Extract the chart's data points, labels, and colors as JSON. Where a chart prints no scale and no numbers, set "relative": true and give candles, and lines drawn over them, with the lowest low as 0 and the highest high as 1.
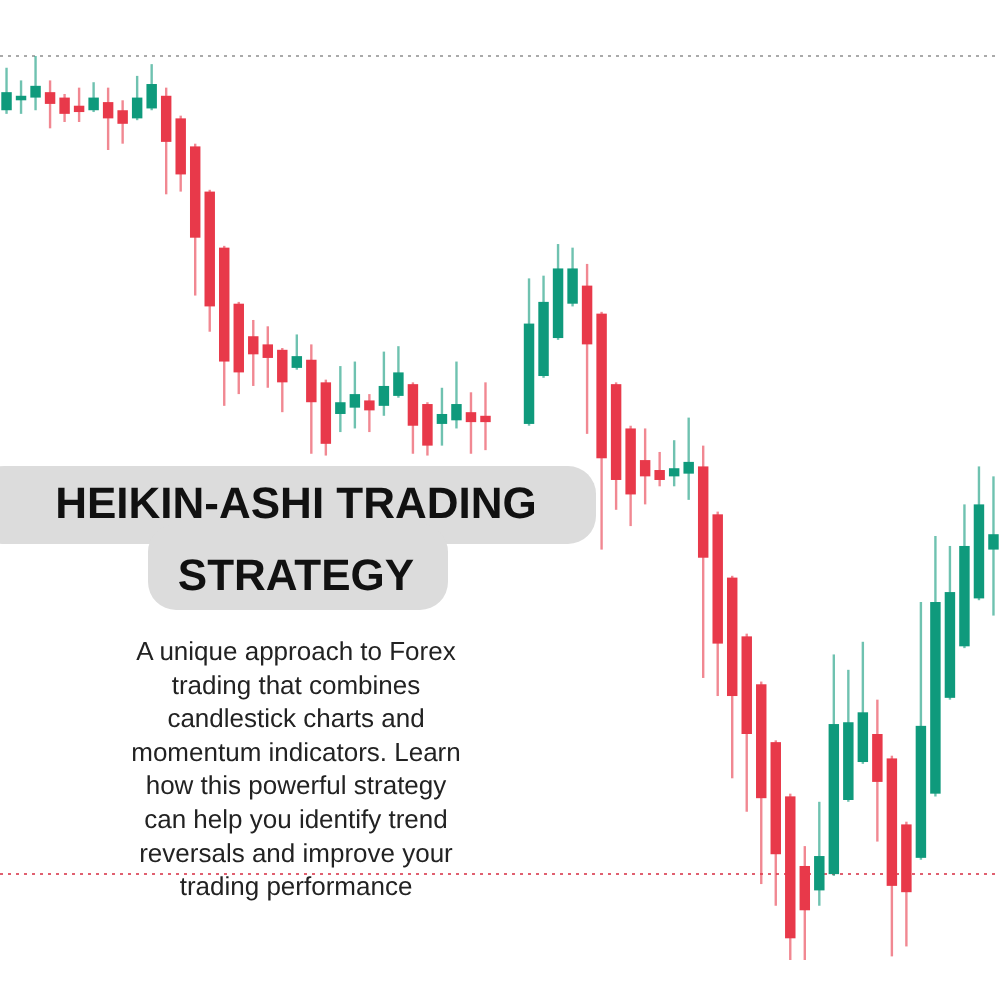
{
  "chart_data": {
    "type": "candlestick",
    "relative": true,
    "title": "HEIKIN-ASHI TRADING STRATEGY",
    "subtitle": "A unique approach to Forex trading that combines candlestick charts and momentum indicators. Learn how this powerful strategy can help you identify trend reversals and improve your trading performance",
    "categories": [
      null,
      null,
      null,
      null,
      null,
      null,
      null,
      null,
      null,
      null,
      null,
      null,
      null,
      null,
      null,
      null,
      null,
      null,
      null,
      null,
      null,
      null,
      null,
      null,
      null,
      null,
      null,
      null,
      null,
      null,
      null,
      null,
      null,
      null,
      null,
      null,
      null,
      null,
      null,
      null,
      null,
      null,
      null,
      null,
      null,
      null,
      null,
      null,
      null,
      null,
      null,
      null,
      null,
      null,
      null,
      null,
      null,
      null,
      null,
      null,
      null,
      null,
      null,
      null,
      null,
      null,
      null,
      null,
      null
    ],
    "ohlc": [
      [
        0.94,
        0.987,
        0.936,
        0.96
      ],
      [
        0.951,
        0.973,
        0.936,
        0.956
      ],
      [
        0.954,
        1,
        0.94,
        0.967
      ],
      [
        0.96,
        0.973,
        0.92,
        0.947
      ],
      [
        0.954,
        0.958,
        0.927,
        0.936
      ],
      [
        0.945,
        0.965,
        0.927,
        0.938
      ],
      [
        0.94,
        0.971,
        0.938,
        0.954
      ],
      [
        0.949,
        0.965,
        0.896,
        0.931
      ],
      [
        0.94,
        0.951,
        0.903,
        0.925
      ],
      [
        0.931,
        0.978,
        0.929,
        0.954
      ],
      [
        0.942,
        0.991,
        0.94,
        0.969
      ],
      [
        0.956,
        0.965,
        0.847,
        0.905
      ],
      [
        0.931,
        0.934,
        0.85,
        0.869
      ],
      [
        0.9,
        0.903,
        0.735,
        0.799
      ],
      [
        0.85,
        0.852,
        0.695,
        0.723
      ],
      [
        0.788,
        0.79,
        0.613,
        0.662
      ],
      [
        0.726,
        0.728,
        0.626,
        0.65
      ],
      [
        0.69,
        0.708,
        0.635,
        0.67
      ],
      [
        0.681,
        0.701,
        0.633,
        0.666
      ],
      [
        0.675,
        0.677,
        0.606,
        0.639
      ],
      [
        0.655,
        0.692,
        0.653,
        0.668
      ],
      [
        0.664,
        0.681,
        0.56,
        0.617
      ],
      [
        0.639,
        0.642,
        0.558,
        0.571
      ],
      [
        0.604,
        0.657,
        0.584,
        0.617
      ],
      [
        0.611,
        0.662,
        0.588,
        0.626
      ],
      [
        0.619,
        0.626,
        0.584,
        0.608
      ],
      [
        0.613,
        0.673,
        0.602,
        0.635
      ],
      [
        0.624,
        0.679,
        0.622,
        0.65
      ],
      [
        0.637,
        0.639,
        0.56,
        0.591
      ],
      [
        0.615,
        0.617,
        0.558,
        0.569
      ],
      [
        0.593,
        0.633,
        0.569,
        0.604
      ],
      [
        0.597,
        0.662,
        0.588,
        0.615
      ],
      [
        0.606,
        0.628,
        0.56,
        0.595
      ],
      [
        0.602,
        0.639,
        0.564,
        0.595
      ],
      null,
      null,
      [
        0.593,
        0.754,
        0.591,
        0.704
      ],
      [
        0.646,
        0.757,
        0.644,
        0.728
      ],
      [
        0.688,
        0.792,
        0.686,
        0.765
      ],
      [
        0.726,
        0.788,
        0.723,
        0.765
      ],
      [
        0.746,
        0.77,
        0.582,
        0.681
      ],
      [
        0.715,
        0.717,
        0.454,
        0.555
      ],
      [
        0.637,
        0.639,
        0.498,
        0.531
      ],
      [
        0.588,
        0.591,
        0.48,
        0.515
      ],
      [
        0.553,
        0.588,
        0.504,
        0.535
      ],
      [
        0.542,
        0.562,
        0.524,
        0.531
      ],
      [
        0.535,
        0.575,
        0.524,
        0.544
      ],
      [
        0.538,
        0.6,
        0.509,
        0.551
      ],
      [
        0.546,
        0.569,
        0.312,
        0.445
      ],
      [
        0.493,
        0.496,
        0.292,
        0.35
      ],
      [
        0.423,
        0.425,
        0.201,
        0.292
      ],
      [
        0.358,
        0.361,
        0.164,
        0.25
      ],
      [
        0.305,
        0.308,
        0.084,
        0.179
      ],
      [
        0.241,
        0.243,
        0.06,
        0.117
      ],
      [
        0.181,
        0.184,
        0,
        0.024
      ],
      [
        0.104,
        0.126,
        0,
        0.055
      ],
      [
        0.077,
        0.175,
        0.06,
        0.115
      ],
      [
        0.095,
        0.338,
        0.093,
        0.261
      ],
      [
        0.177,
        0.321,
        0.175,
        0.263
      ],
      [
        0.219,
        0.352,
        0.217,
        0.274
      ],
      [
        0.25,
        0.288,
        0.131,
        0.197
      ],
      [
        0.223,
        0.226,
        0.004,
        0.082
      ],
      [
        0.15,
        0.153,
        0.015,
        0.075
      ],
      [
        0.113,
        0.396,
        0.111,
        0.259
      ],
      [
        0.184,
        0.469,
        0.181,
        0.396
      ],
      [
        0.29,
        0.458,
        0.288,
        0.407
      ],
      [
        0.347,
        0.504,
        0.345,
        0.458
      ],
      [
        0.4,
        0.546,
        0.398,
        0.504
      ],
      [
        0.454,
        0.535,
        0.381,
        0.471
      ]
    ],
    "colors": [
      "#0f9a7c",
      "#0f9a7c",
      "#0f9a7c",
      "#e8394a",
      "#e8394a",
      "#e8394a",
      "#0f9a7c",
      "#e8394a",
      "#e8394a",
      "#0f9a7c",
      "#0f9a7c",
      "#e8394a",
      "#e8394a",
      "#e8394a",
      "#e8394a",
      "#e8394a",
      "#e8394a",
      "#e8394a",
      "#e8394a",
      "#e8394a",
      "#0f9a7c",
      "#e8394a",
      "#e8394a",
      "#0f9a7c",
      "#0f9a7c",
      "#e8394a",
      "#0f9a7c",
      "#0f9a7c",
      "#e8394a",
      "#e8394a",
      "#0f9a7c",
      "#0f9a7c",
      "#e8394a",
      "#e8394a",
      null,
      null,
      "#0f9a7c",
      "#0f9a7c",
      "#0f9a7c",
      "#0f9a7c",
      "#e8394a",
      "#e8394a",
      "#e8394a",
      "#e8394a",
      "#e8394a",
      "#e8394a",
      "#0f9a7c",
      "#0f9a7c",
      "#e8394a",
      "#e8394a",
      "#e8394a",
      "#e8394a",
      "#e8394a",
      "#e8394a",
      "#e8394a",
      "#e8394a",
      "#0f9a7c",
      "#0f9a7c",
      "#0f9a7c",
      "#0f9a7c",
      "#e8394a",
      "#e8394a",
      "#e8394a",
      "#0f9a7c",
      "#0f9a7c",
      "#0f9a7c",
      "#0f9a7c",
      "#0f9a7c",
      "#0f9a7c"
    ],
    "ref_lines": [
      {
        "axis": "y",
        "value": 1,
        "color": "#aaaaaa",
        "line_style": "dotted"
      },
      {
        "axis": "y",
        "value": 0.095,
        "color": "#e06070",
        "line_style": "dotted"
      }
    ]
  }
}
